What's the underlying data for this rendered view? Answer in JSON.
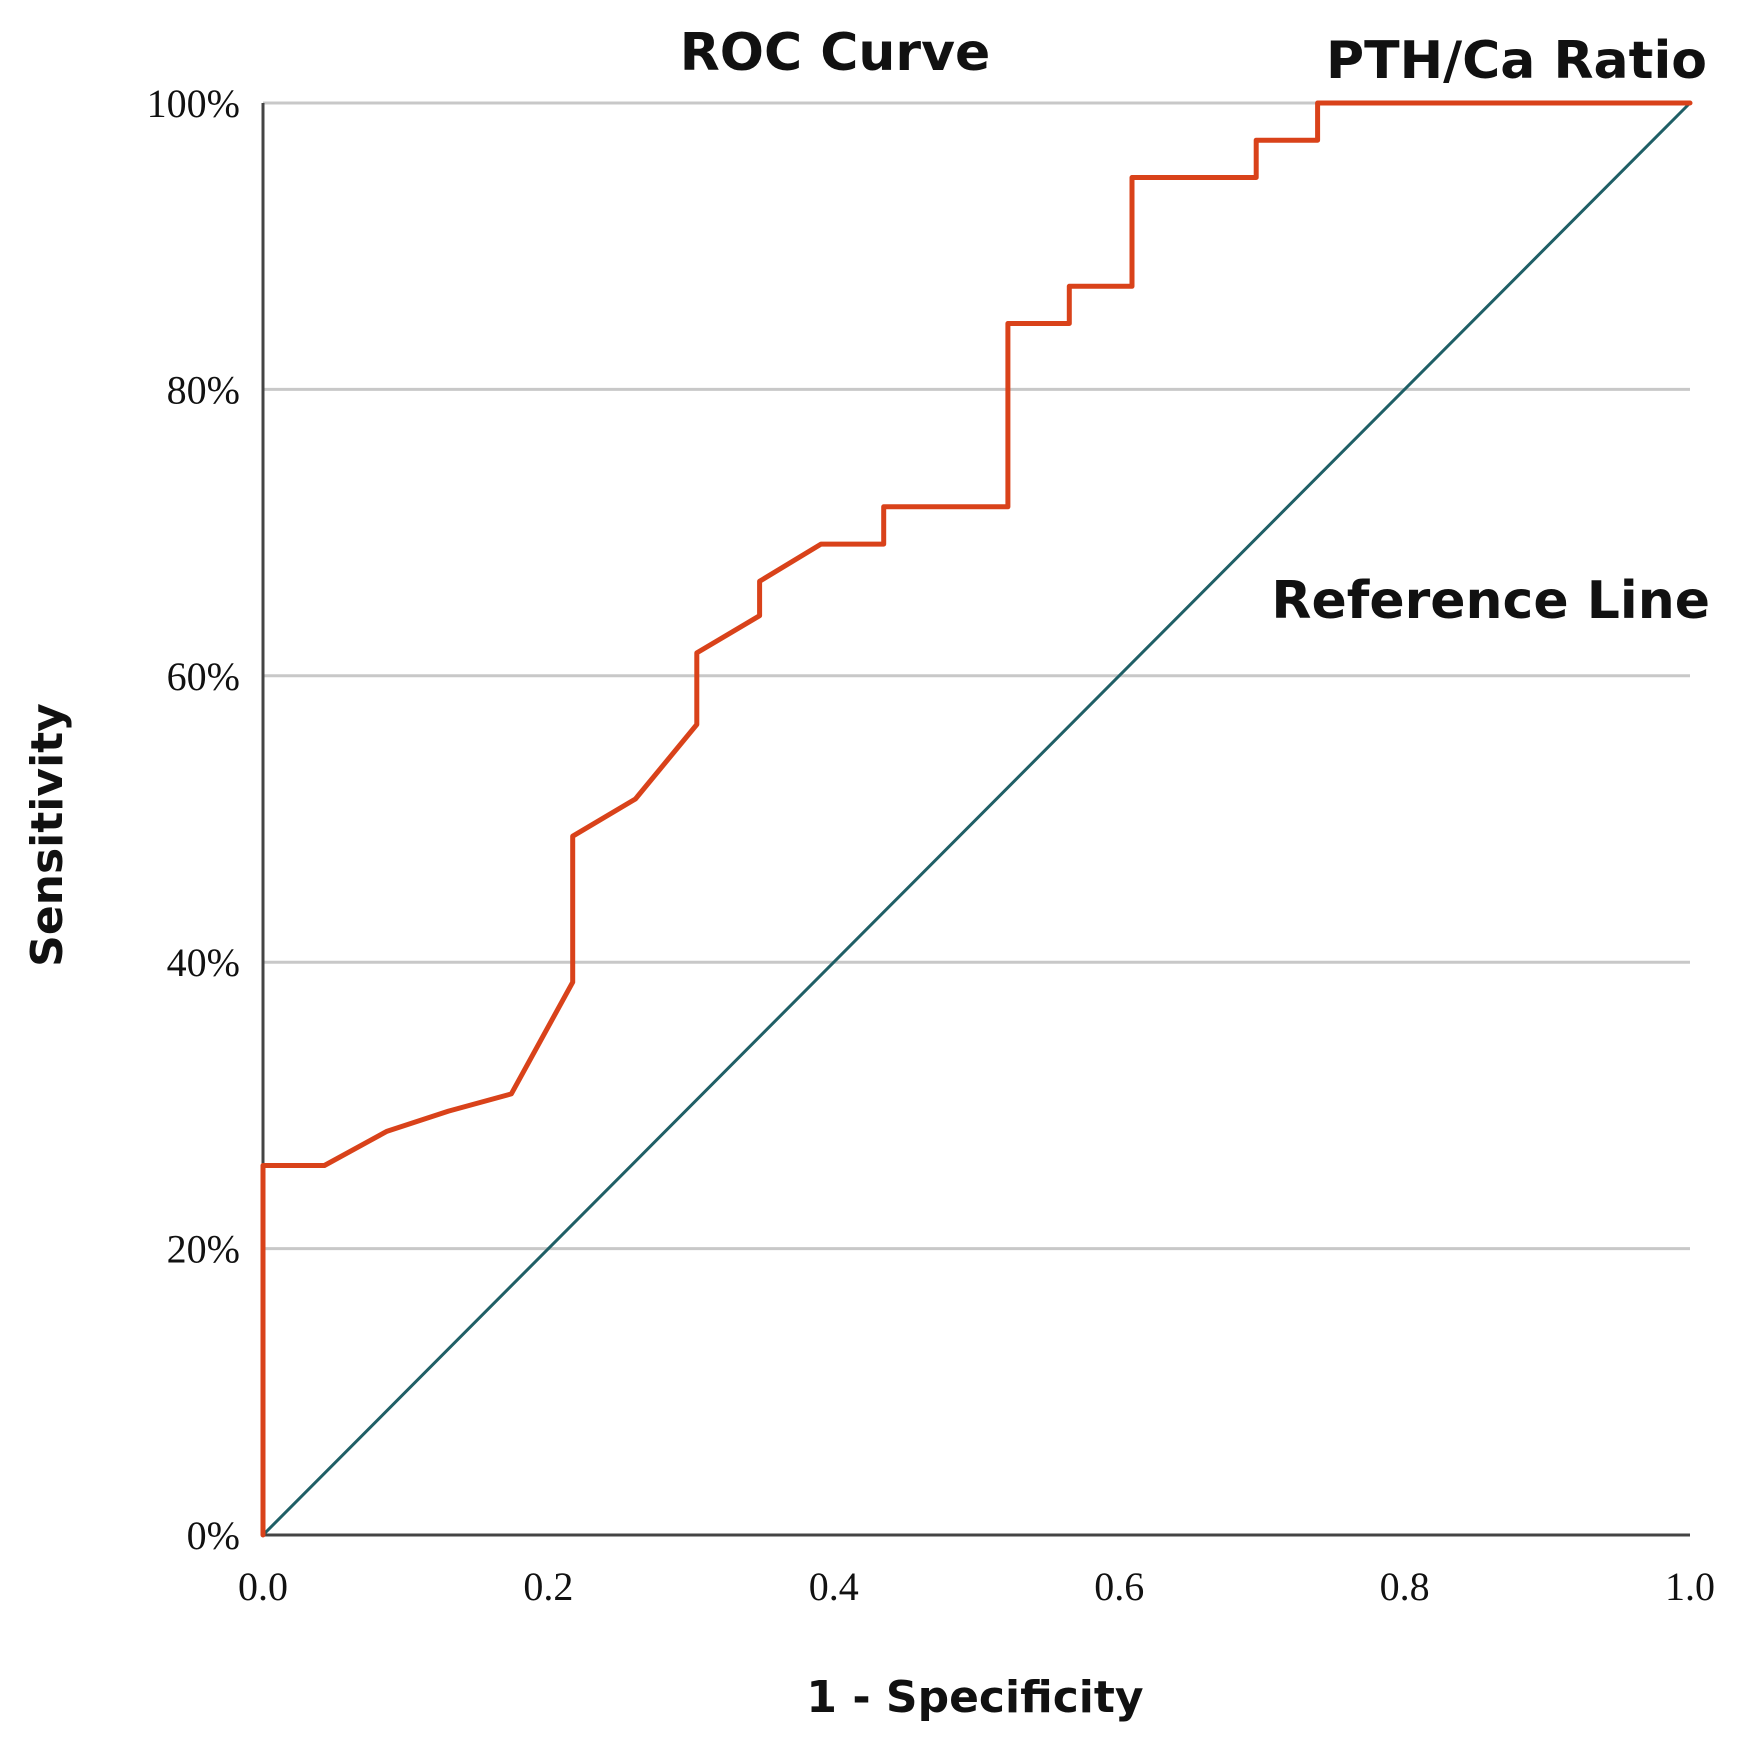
{
  "chart_data": {
    "type": "line",
    "title": "ROC Curve",
    "xlabel": "1 - Specificity",
    "ylabel": "Sensitivity",
    "xlim": [
      0,
      1
    ],
    "ylim": [
      0,
      100
    ],
    "x_ticks": [
      "0.0",
      "0.2",
      "0.4",
      "0.6",
      "0.8",
      "1.0"
    ],
    "y_ticks": [
      "0%",
      "20%",
      "40%",
      "60%",
      "80%",
      "100%"
    ],
    "grid": "horizontal",
    "series": [
      {
        "name": "PTH/Ca Ratio",
        "color": "#d9421a",
        "points": [
          [
            0.0,
            0.0
          ],
          [
            0.0,
            25.8
          ],
          [
            0.043,
            25.8
          ],
          [
            0.087,
            28.2
          ],
          [
            0.13,
            29.6
          ],
          [
            0.174,
            30.8
          ],
          [
            0.217,
            38.6
          ],
          [
            0.217,
            48.8
          ],
          [
            0.261,
            51.4
          ],
          [
            0.304,
            56.6
          ],
          [
            0.304,
            61.6
          ],
          [
            0.348,
            64.2
          ],
          [
            0.348,
            66.6
          ],
          [
            0.391,
            69.2
          ],
          [
            0.435,
            69.2
          ],
          [
            0.435,
            71.8
          ],
          [
            0.522,
            71.8
          ],
          [
            0.522,
            84.6
          ],
          [
            0.565,
            84.6
          ],
          [
            0.565,
            87.2
          ],
          [
            0.609,
            87.2
          ],
          [
            0.609,
            94.8
          ],
          [
            0.696,
            94.8
          ],
          [
            0.696,
            97.4
          ],
          [
            0.739,
            97.4
          ],
          [
            0.739,
            100.0
          ],
          [
            1.0,
            100.0
          ]
        ]
      },
      {
        "name": "Reference Line",
        "color": "#1f5f66",
        "points": [
          [
            0.0,
            0.0
          ],
          [
            1.0,
            100.0
          ]
        ]
      }
    ],
    "annotations": {
      "series_label": "PTH/Ca Ratio",
      "reference_label": "Reference Line"
    }
  }
}
